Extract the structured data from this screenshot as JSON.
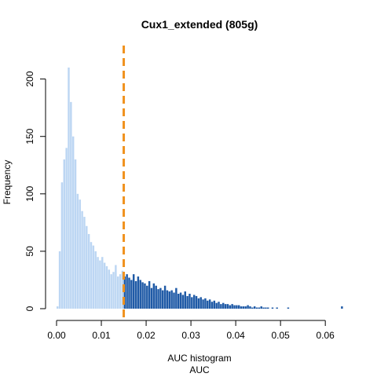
{
  "chart_data": {
    "type": "bar",
    "title": "Cux1_extended (805g)",
    "xlabel": "AUC histogram",
    "xlabel2": "AUC",
    "ylabel": "Frequency",
    "xlim": [
      0,
      0.065
    ],
    "ylim": [
      0,
      210
    ],
    "x_ticks": [
      0.0,
      0.01,
      0.02,
      0.03,
      0.04,
      0.05,
      0.06
    ],
    "x_tick_labels": [
      "0.00",
      "0.01",
      "0.02",
      "0.03",
      "0.04",
      "0.05",
      "0.06"
    ],
    "y_ticks": [
      0,
      50,
      100,
      150,
      200
    ],
    "y_tick_labels": [
      "0",
      "50",
      "100",
      "150",
      "200"
    ],
    "bin_width": 0.0005,
    "threshold": 0.015,
    "grid": false,
    "colors": {
      "below_threshold": "#bcd6f3",
      "above_threshold": "#1f5aa6",
      "threshold_line": "#f0921e"
    },
    "values": [
      2,
      50,
      110,
      130,
      140,
      210,
      180,
      150,
      130,
      100,
      95,
      85,
      80,
      72,
      65,
      58,
      55,
      50,
      45,
      42,
      45,
      40,
      37,
      34,
      30,
      32,
      38,
      28,
      30,
      33,
      28,
      30,
      27,
      25,
      30,
      24,
      28,
      25,
      23,
      22,
      20,
      24,
      18,
      22,
      20,
      17,
      18,
      16,
      20,
      16,
      15,
      16,
      14,
      18,
      13,
      14,
      12,
      15,
      11,
      13,
      10,
      12,
      11,
      9,
      10,
      8,
      9,
      7,
      8,
      6,
      7,
      5,
      6,
      4,
      5,
      4,
      4,
      3,
      4,
      3,
      3,
      3,
      2,
      2,
      2,
      3,
      2,
      1,
      2,
      1,
      1,
      2,
      1,
      1,
      1,
      0,
      1,
      0,
      1,
      0,
      0,
      0,
      0,
      1,
      0,
      0,
      0,
      0,
      0,
      0,
      0,
      0,
      0,
      0,
      0,
      0,
      0,
      0,
      0,
      0,
      0,
      0,
      0,
      0,
      0,
      0,
      0,
      2
    ]
  }
}
